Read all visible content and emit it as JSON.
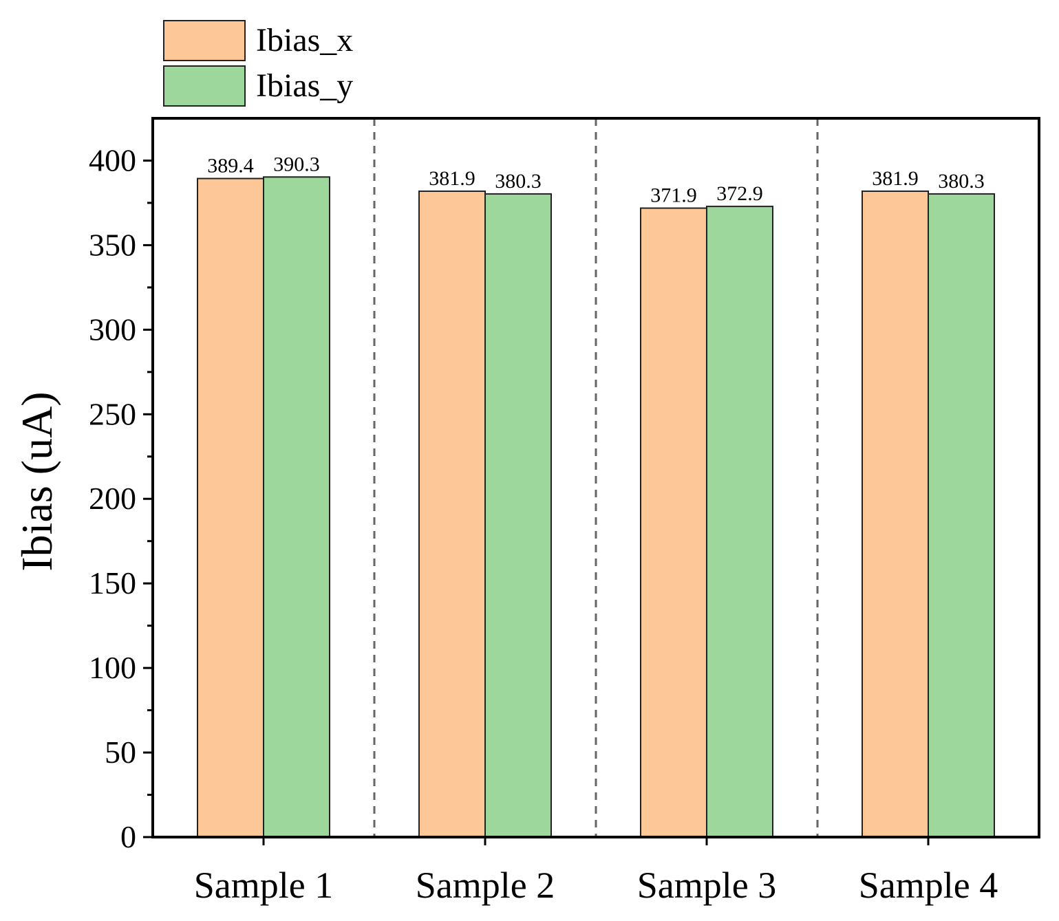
{
  "chart_data": {
    "type": "bar",
    "title": "",
    "xlabel": "",
    "ylabel": "Ibias (uA)",
    "ylim": [
      0,
      425
    ],
    "yticks": [
      0,
      50,
      100,
      150,
      200,
      250,
      300,
      350,
      400
    ],
    "grid": false,
    "legend_position": "top-left outside",
    "categories": [
      "Sample 1",
      "Sample 2",
      "Sample 3",
      "Sample 4"
    ],
    "series": [
      {
        "name": "Ibias_x",
        "color": "#FDC797",
        "values": [
          389.4,
          381.9,
          371.9,
          381.9
        ],
        "labels": [
          "389.4",
          "381.9",
          "371.9",
          "381.9"
        ]
      },
      {
        "name": "Ibias_y",
        "color": "#9ED79B",
        "values": [
          390.3,
          380.3,
          372.9,
          380.3
        ],
        "labels": [
          "390.3",
          "380.3",
          "372.9",
          "380.3"
        ]
      }
    ],
    "group_separators": "dashed"
  }
}
